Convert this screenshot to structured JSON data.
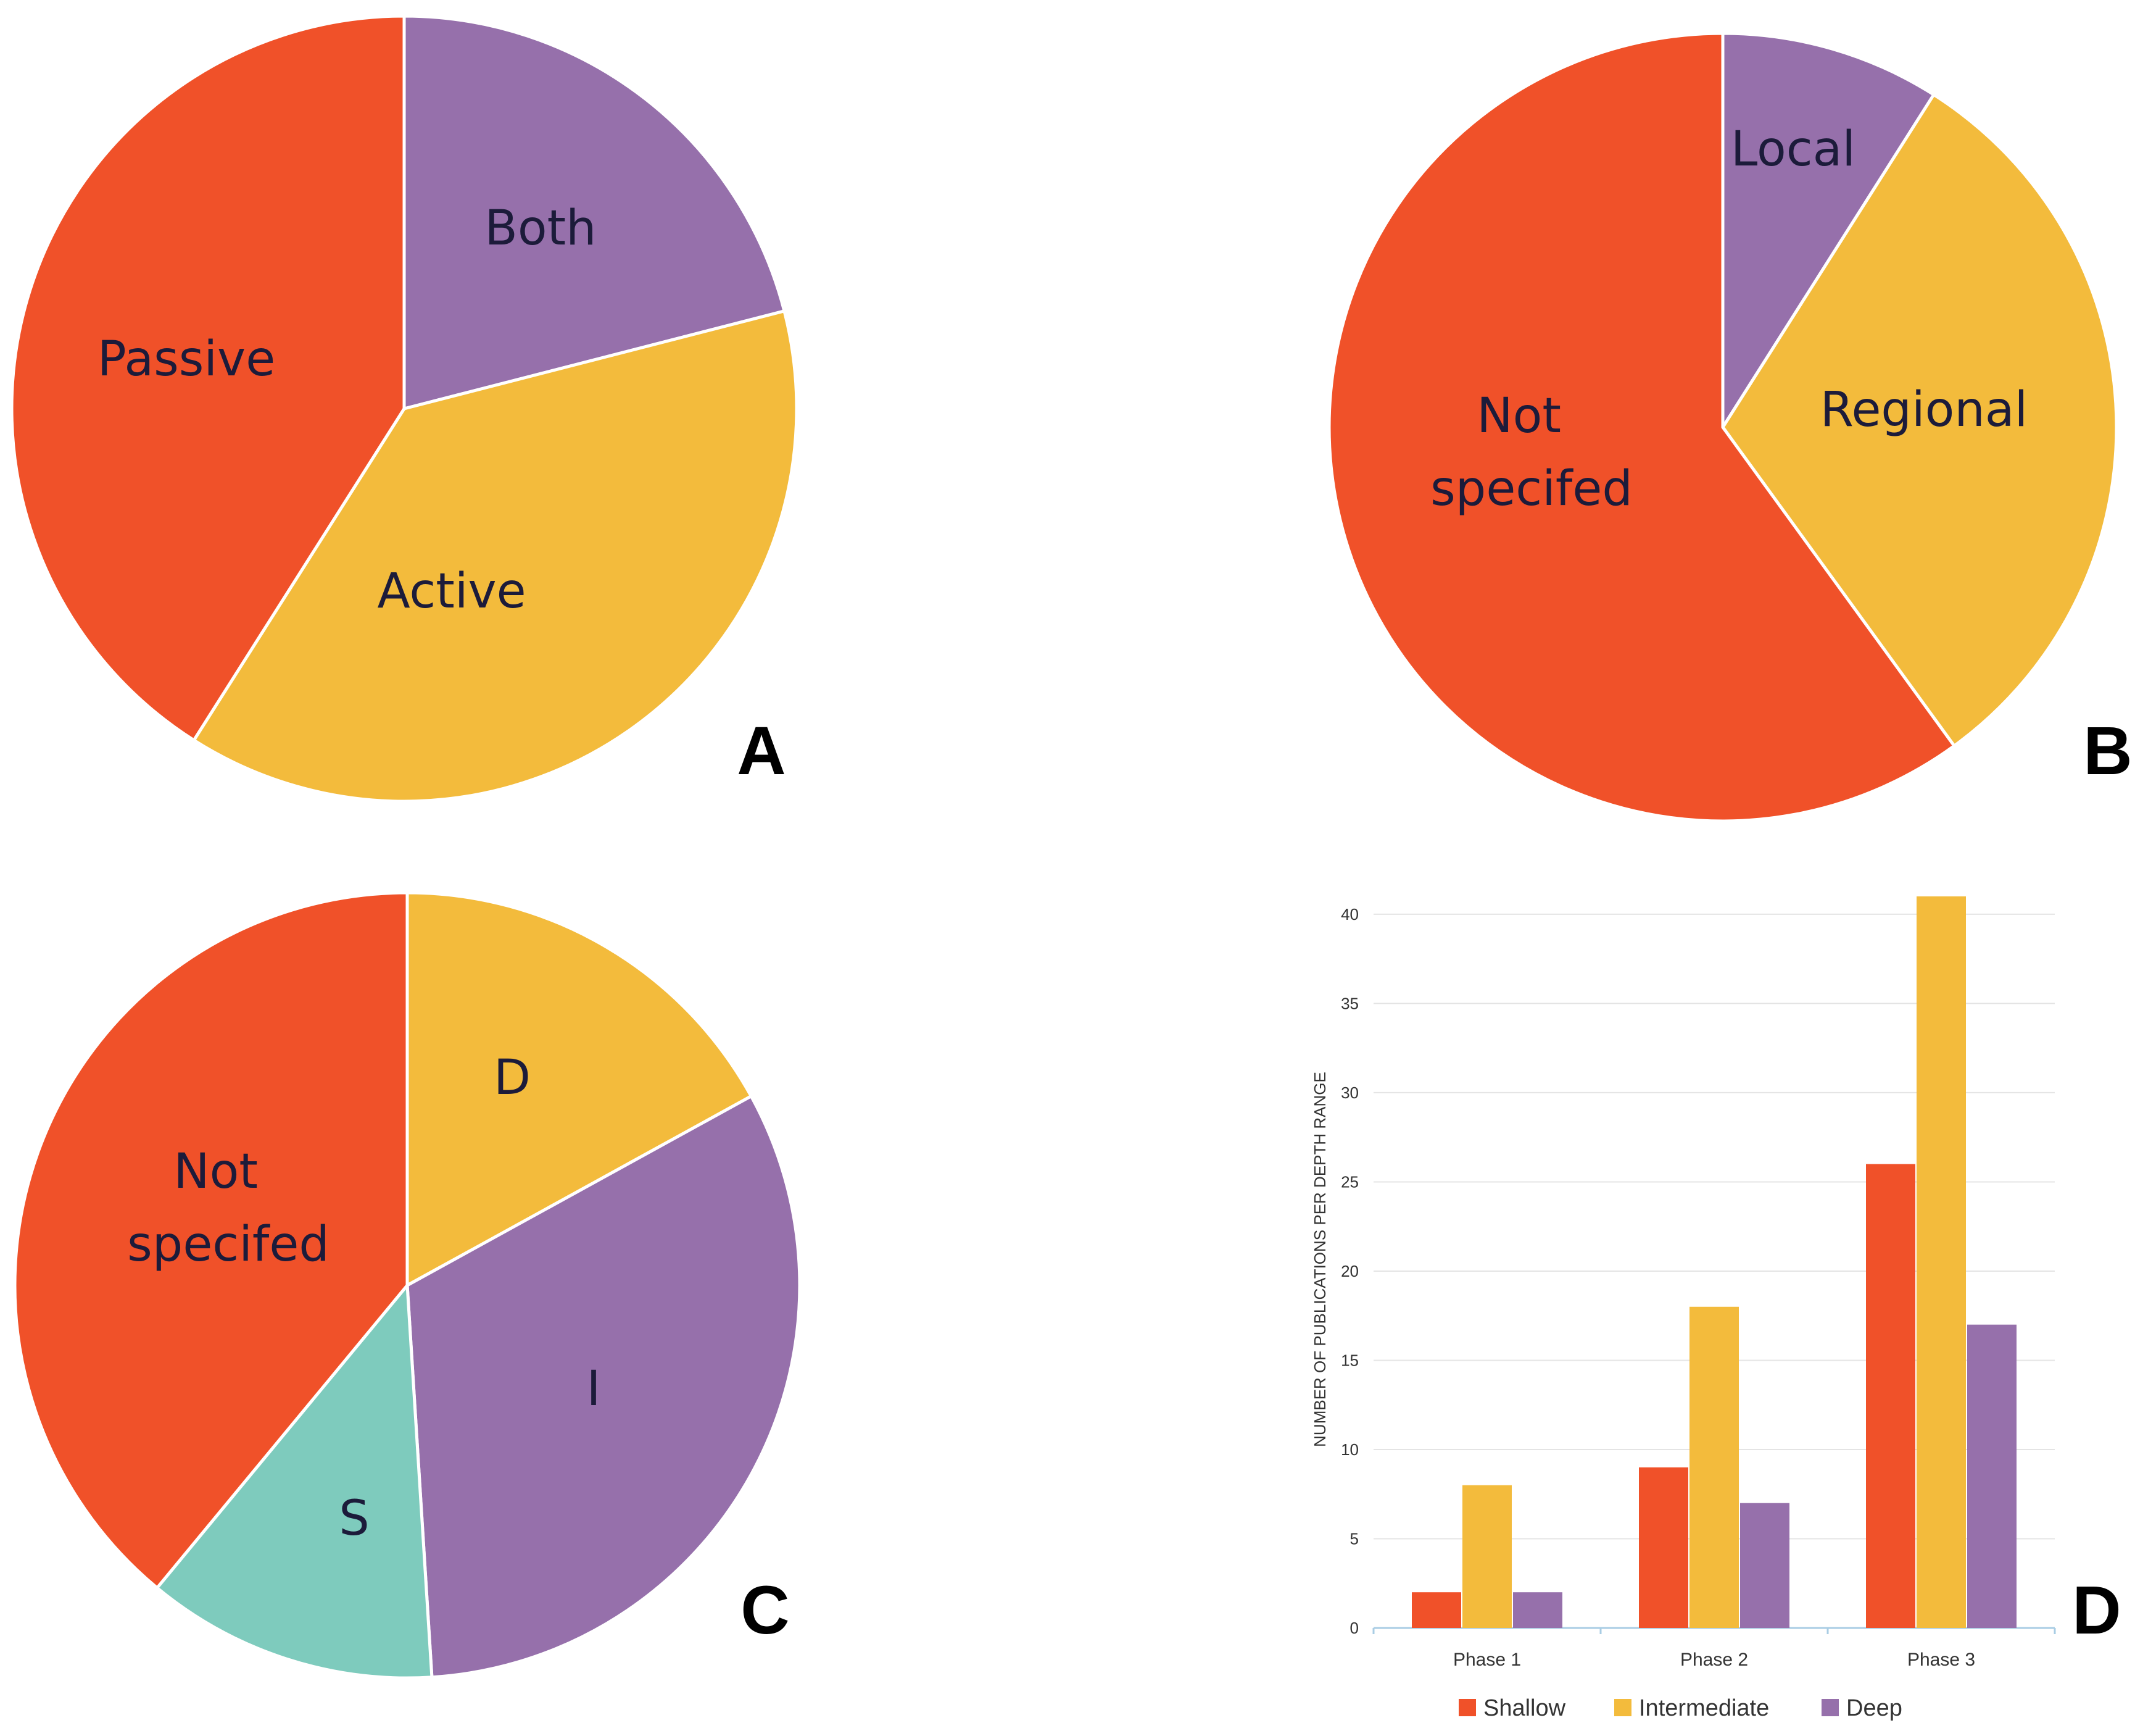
{
  "chart_data": [
    {
      "type": "pie",
      "panel": "A",
      "labels": [
        "Both",
        "Active",
        "Passive"
      ],
      "values": [
        21,
        38,
        41
      ],
      "colors": [
        "#9670ab",
        "#f3bb3c",
        "#f05129"
      ]
    },
    {
      "type": "pie",
      "panel": "B",
      "labels": [
        "Local",
        "Regional",
        "Not specifed"
      ],
      "values": [
        9,
        31,
        60
      ],
      "colors": [
        "#9670ab",
        "#f3bb3c",
        "#f05129"
      ]
    },
    {
      "type": "pie",
      "panel": "C",
      "labels": [
        "D",
        "I",
        "S",
        "Not specifed"
      ],
      "values": [
        17,
        32,
        12,
        39
      ],
      "colors": [
        "#f3bb3c",
        "#9670ab",
        "#7ecbbd",
        "#f05129"
      ]
    },
    {
      "type": "bar",
      "panel": "D",
      "categories": [
        "Phase 1",
        "Phase 2",
        "Phase 3"
      ],
      "series": [
        {
          "name": "Shallow",
          "values": [
            2,
            9,
            26
          ],
          "color": "#f05129"
        },
        {
          "name": "Intermediate",
          "values": [
            8,
            18,
            41
          ],
          "color": "#f3bb3c"
        },
        {
          "name": "Deep",
          "values": [
            2,
            7,
            17
          ],
          "color": "#9670ab"
        }
      ],
      "ylabel": "NUMBER OF PUBLICATIONS PER DEPTH RANGE",
      "xlabel": "",
      "ylim": [
        0,
        41
      ],
      "yticks": [
        0,
        5,
        10,
        15,
        20,
        25,
        30,
        35,
        40
      ],
      "legend_position": "bottom"
    }
  ]
}
